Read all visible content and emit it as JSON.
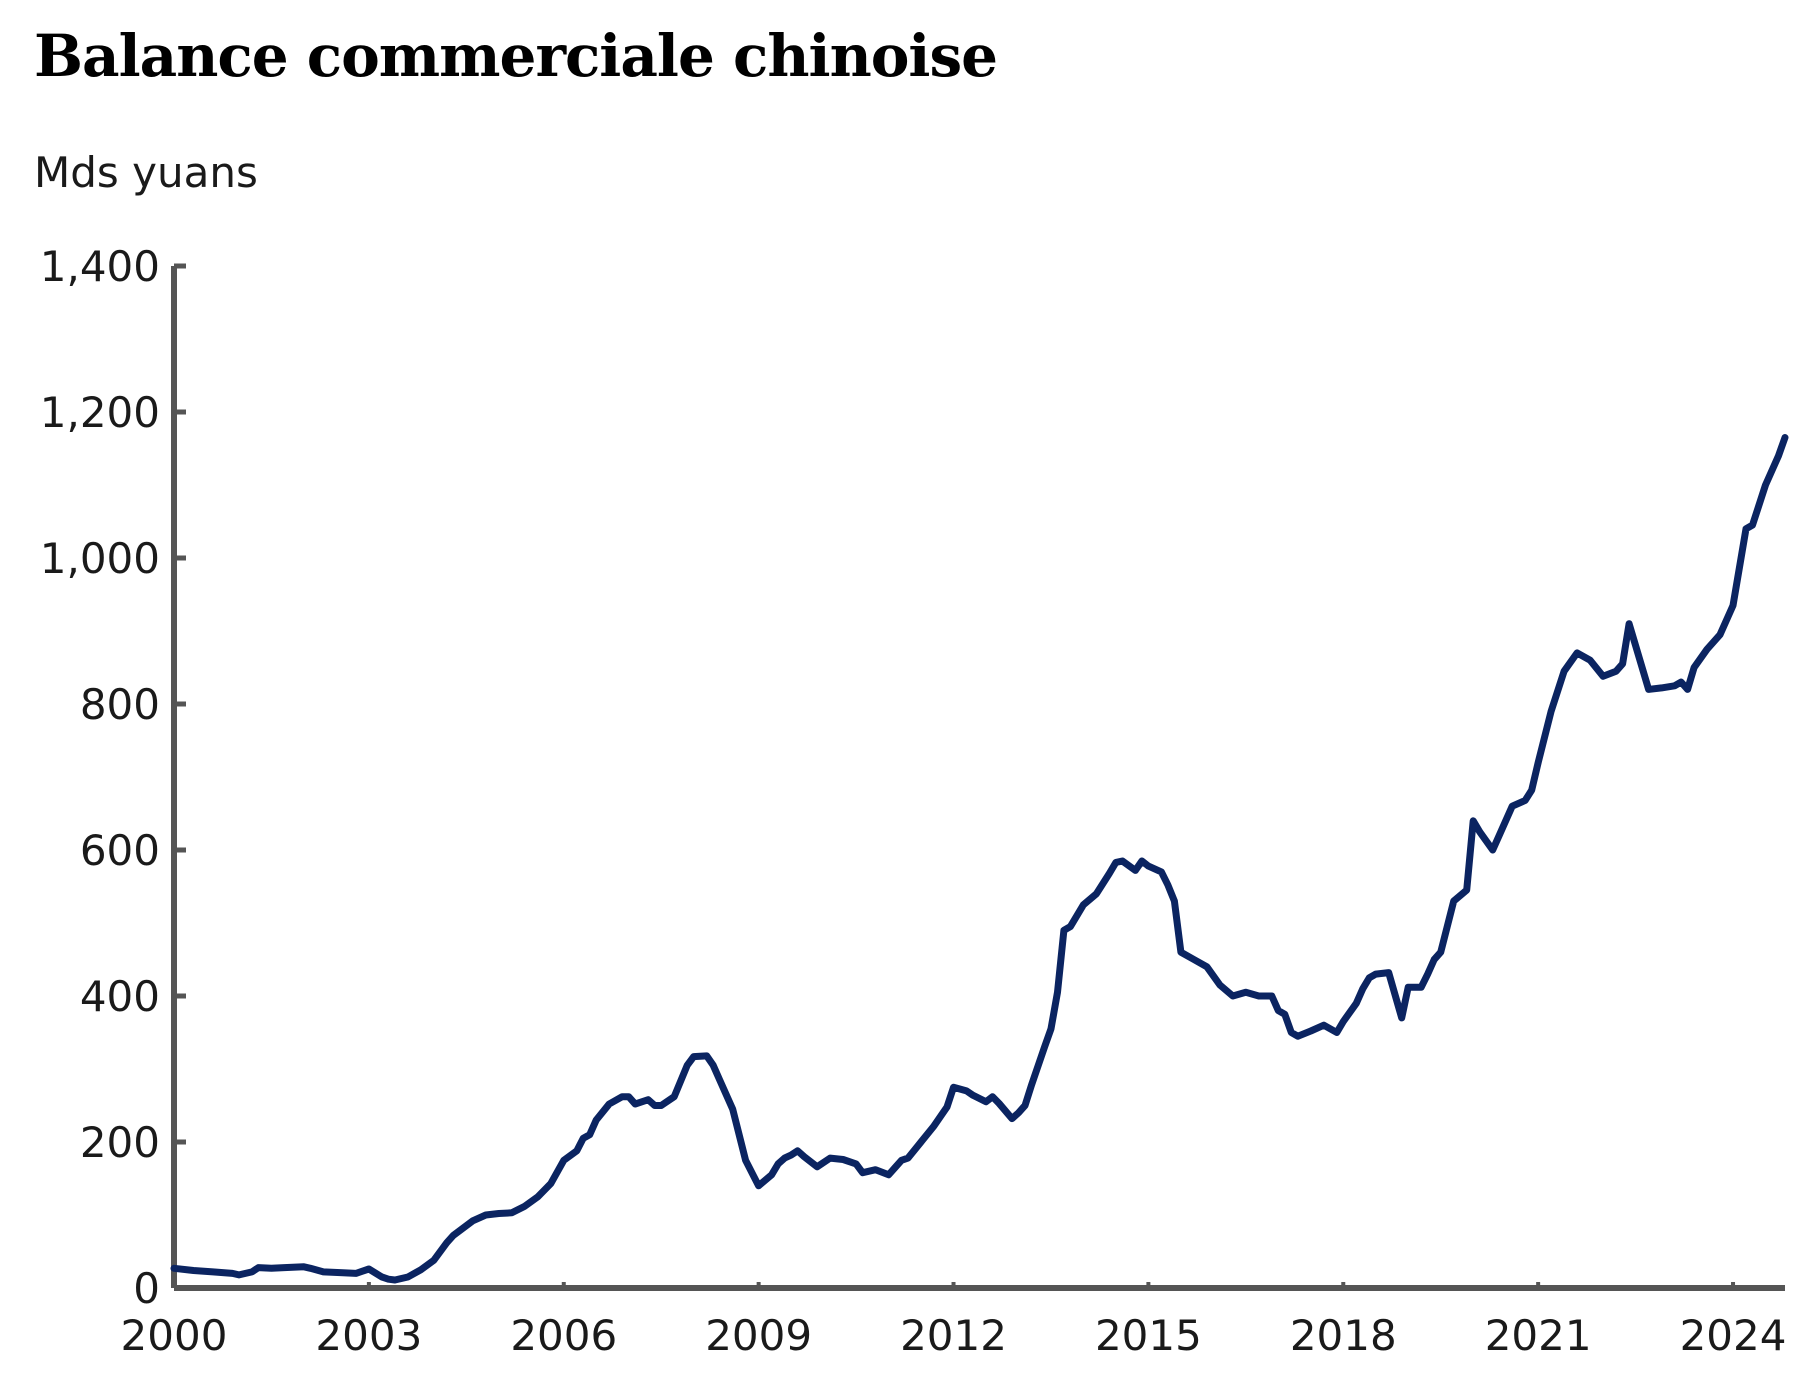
{
  "chart_data": {
    "type": "line",
    "title": "Balance commerciale chinoise",
    "ylabel": "Mds yuans",
    "xlabel": "",
    "xlim": [
      2000,
      2024.8
    ],
    "ylim": [
      0,
      1400
    ],
    "x_ticks": [
      2000,
      2003,
      2006,
      2009,
      2012,
      2015,
      2018,
      2021,
      2024
    ],
    "x_tick_labels": [
      "2000",
      "2003",
      "2006",
      "2009",
      "2012",
      "2015",
      "2018",
      "2021",
      "2024"
    ],
    "y_ticks": [
      0,
      200,
      400,
      600,
      800,
      1000,
      1200,
      1400
    ],
    "y_tick_labels": [
      "0",
      "200",
      "400",
      "600",
      "800",
      "1,000",
      "1,200",
      "1,400"
    ],
    "grid": false,
    "colors": {
      "line": "#0b2461",
      "axis": "#555555"
    },
    "series": [
      {
        "x": [
          2000.0,
          2000.3,
          2000.6,
          2000.9,
          2001.0,
          2001.2,
          2001.3,
          2001.5,
          2001.7,
          2002.0,
          2002.1,
          2002.3,
          2002.6,
          2002.8,
          2002.9,
          2003.0,
          2003.2,
          2003.3,
          2003.4,
          2003.6,
          2003.8,
          2004.0,
          2004.2,
          2004.3,
          2004.6,
          2004.8,
          2005.0,
          2005.2,
          2005.4,
          2005.6,
          2005.8,
          2006.0,
          2006.2,
          2006.3,
          2006.4,
          2006.5,
          2006.7,
          2006.9,
          2007.0,
          2007.1,
          2007.3,
          2007.4,
          2007.5,
          2007.7,
          2007.9,
          2008.0,
          2008.2,
          2008.3,
          2008.4,
          2008.6,
          2008.8,
          2009.0,
          2009.2,
          2009.3,
          2009.4,
          2009.5,
          2009.6,
          2009.7,
          2009.9,
          2010.1,
          2010.3,
          2010.5,
          2010.6,
          2010.8,
          2011.0,
          2011.1,
          2011.2,
          2011.3,
          2011.5,
          2011.7,
          2011.9,
          2012.0,
          2012.2,
          2012.3,
          2012.5,
          2012.6,
          2012.7,
          2012.9,
          2013.0,
          2013.1,
          2013.2,
          2013.4,
          2013.5,
          2013.6,
          2013.7,
          2013.8,
          2014.0,
          2014.2,
          2014.4,
          2014.5,
          2014.6,
          2014.8,
          2014.9,
          2015.0,
          2015.2,
          2015.3,
          2015.4,
          2015.5,
          2015.7,
          2015.9,
          2016.1,
          2016.3,
          2016.5,
          2016.7,
          2016.9,
          2017.0,
          2017.1,
          2017.2,
          2017.3,
          2017.5,
          2017.7,
          2017.9,
          2018.0,
          2018.2,
          2018.3,
          2018.4,
          2018.5,
          2018.7,
          2018.9,
          2019.0,
          2019.2,
          2019.3,
          2019.4,
          2019.5,
          2019.7,
          2019.9,
          2020.0,
          2020.1,
          2020.3,
          2020.4,
          2020.6,
          2020.8,
          2020.9,
          2021.0,
          2021.2,
          2021.4,
          2021.6,
          2021.8,
          2022.0,
          2022.2,
          2022.3,
          2022.4,
          2022.5,
          2022.6,
          2022.7,
          2022.9,
          2023.1,
          2023.2,
          2023.3,
          2023.4,
          2023.6,
          2023.8,
          2024.0,
          2024.2,
          2024.3,
          2024.5,
          2024.7,
          2024.8
        ],
        "values": [
          27,
          24,
          22,
          20,
          18,
          22,
          28,
          27,
          28,
          29,
          27,
          22,
          21,
          20,
          23,
          26,
          15,
          12,
          11,
          15,
          25,
          38,
          62,
          72,
          92,
          100,
          102,
          103,
          112,
          125,
          143,
          175,
          188,
          205,
          210,
          230,
          252,
          262,
          262,
          252,
          258,
          250,
          250,
          262,
          305,
          317,
          318,
          305,
          285,
          245,
          175,
          140,
          155,
          170,
          178,
          182,
          188,
          180,
          166,
          178,
          176,
          170,
          158,
          162,
          155,
          165,
          175,
          178,
          200,
          222,
          248,
          275,
          270,
          264,
          255,
          262,
          253,
          232,
          240,
          250,
          278,
          330,
          355,
          405,
          490,
          495,
          525,
          540,
          568,
          583,
          585,
          572,
          585,
          578,
          570,
          552,
          530,
          460,
          450,
          440,
          415,
          400,
          405,
          400,
          400,
          380,
          375,
          350,
          345,
          352,
          360,
          350,
          365,
          390,
          410,
          425,
          430,
          432,
          370,
          412,
          412,
          430,
          450,
          460,
          530,
          545,
          640,
          625,
          600,
          620,
          660,
          668,
          682,
          720,
          790,
          845,
          870,
          860,
          838,
          845,
          855,
          910,
          880,
          850,
          820,
          822,
          825,
          830,
          820,
          850,
          875,
          895,
          935,
          1040,
          1045,
          1100,
          1140,
          1165
        ]
      }
    ]
  }
}
